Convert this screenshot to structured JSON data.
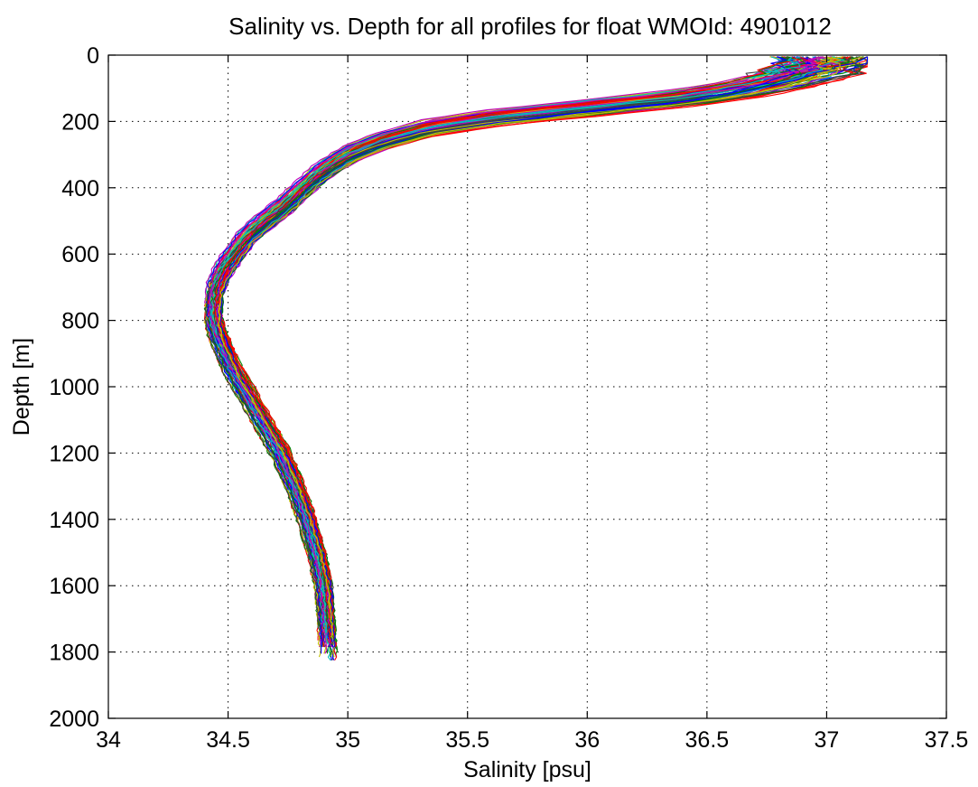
{
  "chart_data": {
    "type": "line",
    "title": "Salinity vs. Depth for all profiles for float WMOId: 4901012",
    "xlabel": "Salinity [psu]",
    "ylabel": "Depth [m]",
    "xlim": [
      34,
      37.5
    ],
    "ylim": [
      0,
      2000
    ],
    "y_inverted": true,
    "grid": true,
    "legend": "none",
    "x_ticks": [
      "34",
      "34.5",
      "35",
      "35.5",
      "36",
      "36.5",
      "37",
      "37.5"
    ],
    "y_ticks": [
      "0",
      "200",
      "400",
      "600",
      "800",
      "1000",
      "1200",
      "1400",
      "1600",
      "1800",
      "2000"
    ],
    "palette": [
      "#0000ff",
      "#008000",
      "#ff0000",
      "#00bfbf",
      "#bf00bf",
      "#bfbf00",
      "#404040"
    ],
    "profile_count": 90,
    "mean_profile": {
      "depth": [
        5,
        40,
        70,
        100,
        130,
        160,
        190,
        220,
        260,
        300,
        350,
        400,
        450,
        500,
        550,
        600,
        650,
        700,
        750,
        800,
        850,
        900,
        950,
        1000,
        1100,
        1200,
        1300,
        1400,
        1500,
        1600,
        1700,
        1800
      ],
      "salinity": [
        36.98,
        36.98,
        36.85,
        36.68,
        36.42,
        36.02,
        35.62,
        35.35,
        35.15,
        35.01,
        34.9,
        34.82,
        34.75,
        34.66,
        34.58,
        34.53,
        34.48,
        34.45,
        34.44,
        34.44,
        34.46,
        34.49,
        34.52,
        34.56,
        34.64,
        34.72,
        34.78,
        34.83,
        34.87,
        34.9,
        34.91,
        34.92
      ]
    }
  }
}
